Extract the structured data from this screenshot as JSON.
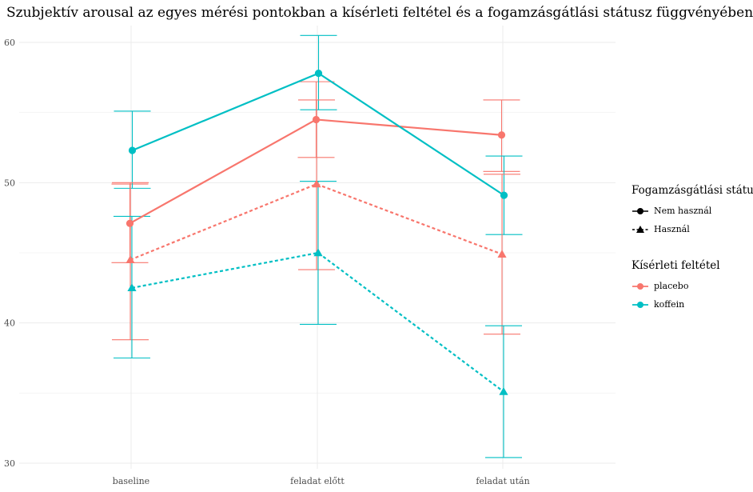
{
  "chart_data": {
    "type": "line",
    "title": "Szubjektív arousal az egyes mérési pontokban a kísérleti feltétel és a fogamzásgátlási státusz függvényében",
    "xlabel": "",
    "ylabel": "",
    "categories": [
      "baseline",
      "feladat előtt",
      "feladat után"
    ],
    "ylim": [
      29.6,
      61.2
    ],
    "yticks": [
      30,
      40,
      50,
      60
    ],
    "grid": true,
    "legend_placement": "right",
    "series": [
      {
        "condition": "placebo",
        "status": "Nem használ",
        "color": "#F8766D",
        "linetype": "solid",
        "shape": "circle",
        "values": [
          47.1,
          54.5,
          53.4
        ],
        "lower": [
          44.3,
          51.8,
          50.8
        ],
        "upper": [
          49.9,
          57.2,
          55.9
        ]
      },
      {
        "condition": "koffein",
        "status": "Nem használ",
        "color": "#00BFC4",
        "linetype": "solid",
        "shape": "circle",
        "values": [
          52.3,
          57.8,
          49.1
        ],
        "lower": [
          49.6,
          55.2,
          46.3
        ],
        "upper": [
          55.1,
          60.5,
          51.9
        ]
      },
      {
        "condition": "placebo",
        "status": "Használ",
        "color": "#F8766D",
        "linetype": "dashed",
        "shape": "triangle",
        "values": [
          44.5,
          49.9,
          44.9
        ],
        "lower": [
          38.8,
          43.8,
          39.2
        ],
        "upper": [
          50.0,
          55.9,
          50.6
        ]
      },
      {
        "condition": "koffein",
        "status": "Használ",
        "color": "#00BFC4",
        "linetype": "dashed",
        "shape": "triangle",
        "values": [
          42.5,
          45.0,
          35.1
        ],
        "lower": [
          37.5,
          39.9,
          30.4
        ],
        "upper": [
          47.6,
          50.1,
          39.8
        ]
      }
    ]
  },
  "legend": {
    "status_title": "Fogamzásgátlási státusz",
    "status_items": [
      {
        "label": "Nem használ",
        "shape": "circle",
        "linetype": "solid"
      },
      {
        "label": "Használ",
        "shape": "triangle",
        "linetype": "dashed"
      }
    ],
    "condition_title": "Kísérleti feltétel",
    "condition_items": [
      {
        "label": "placebo",
        "color": "#F8766D"
      },
      {
        "label": "koffein",
        "color": "#00BFC4"
      }
    ]
  }
}
